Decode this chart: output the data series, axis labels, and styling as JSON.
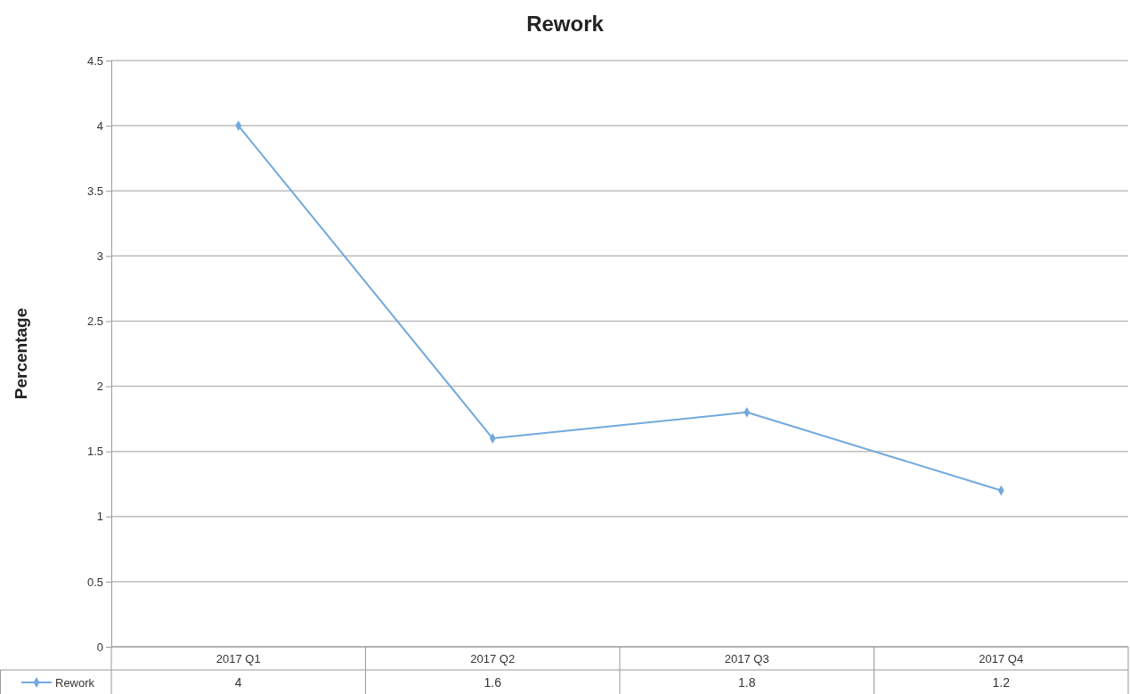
{
  "chart_data": {
    "type": "line",
    "title": "Rework",
    "ylabel": "Percentage",
    "categories": [
      "2017 Q1",
      "2017 Q2",
      "2017 Q3",
      "2017 Q4"
    ],
    "series": [
      {
        "name": "Rework",
        "color": "#72a9dd",
        "values": [
          4,
          1.6,
          1.8,
          1.2
        ]
      }
    ],
    "ylim": [
      0,
      4.5
    ],
    "yticks": [
      0,
      0.5,
      1,
      1.5,
      2,
      2.5,
      3,
      3.5,
      4,
      4.5
    ],
    "grid": "y",
    "marker": "diamond",
    "line_style": "solid",
    "data_labels": true,
    "legend": "bottom left"
  }
}
